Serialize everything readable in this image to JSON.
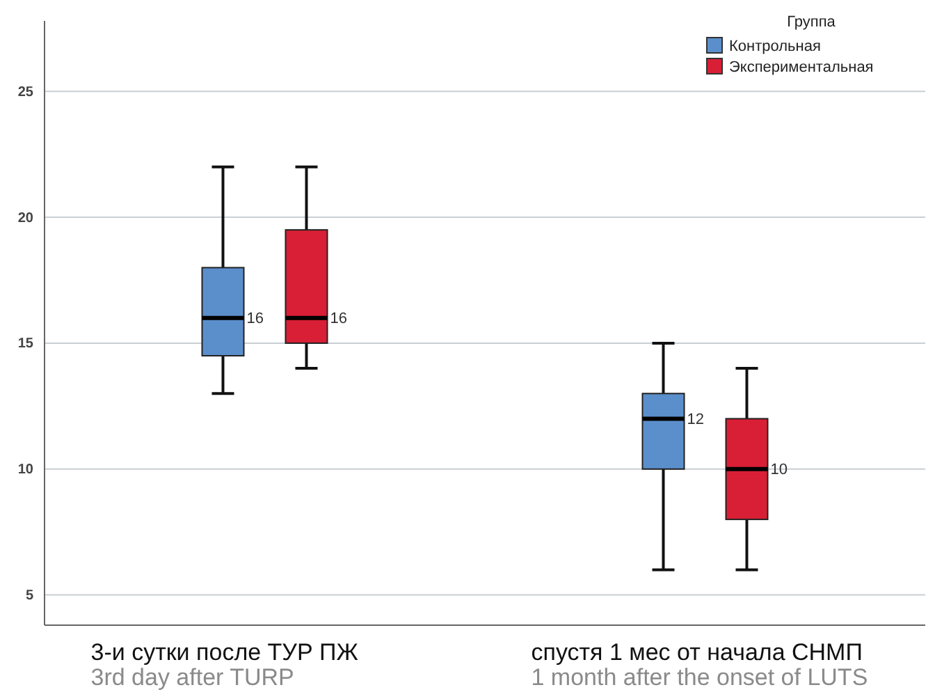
{
  "chart_data": {
    "type": "box",
    "categories": [
      "3-и сутки после ТУР ПЖ\n3rd day after TURP",
      "спустя 1 мес от начала СНМП\n1 month after the onset of LUTS"
    ],
    "ylim": [
      3.8,
      27.8
    ],
    "yticks": [
      5,
      10,
      15,
      20,
      25
    ],
    "grid": "y",
    "legend": "top right",
    "legend_title": "Группа",
    "series": [
      {
        "name": "Контрольная",
        "color": "#5b8fcb",
        "value_labels": [
          "16",
          "12"
        ],
        "boxes": [
          {
            "low": 13,
            "q1": 14.5,
            "median": 16,
            "q3": 18,
            "high": 22
          },
          {
            "low": 6,
            "q1": 10,
            "median": 12,
            "q3": 13,
            "high": 15
          }
        ]
      },
      {
        "name": "Экспериментальная",
        "color": "#d91f35",
        "value_labels": [
          "16",
          "10"
        ],
        "boxes": [
          {
            "low": 14,
            "q1": 15,
            "median": 16,
            "q3": 19.5,
            "high": 22
          },
          {
            "low": 6,
            "q1": 8,
            "median": 10,
            "q3": 12,
            "high": 14
          }
        ]
      }
    ]
  }
}
